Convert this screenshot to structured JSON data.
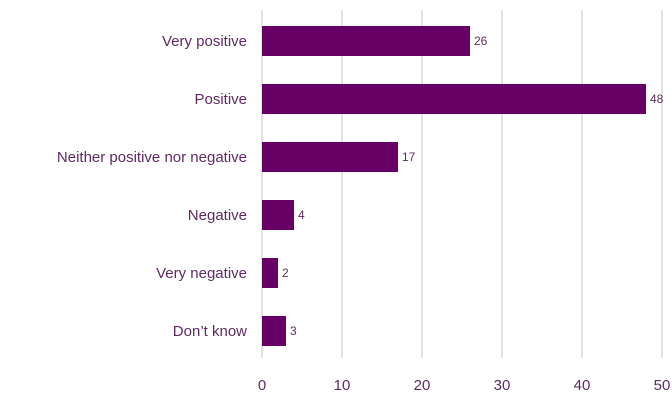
{
  "chart_data": {
    "type": "bar",
    "orientation": "horizontal",
    "categories": [
      "Very positive",
      "Positive",
      "Neither positive nor negative",
      "Negative",
      "Very negative",
      "Don’t know"
    ],
    "values": [
      26,
      48,
      17,
      4,
      2,
      3
    ],
    "data_labels": [
      "26",
      "48",
      "17",
      "4",
      "2",
      "3"
    ],
    "xlim": [
      0,
      50
    ],
    "xticks": [
      "0",
      "10",
      "20",
      "30",
      "40",
      "50"
    ],
    "grid": "vertical",
    "legend": "none",
    "colors": {
      "bar": "#660066",
      "grid": "#d9d9d9",
      "category_text": "#5f2a62",
      "tick_text": "#5f2a62",
      "value_text": "#5f2a62"
    }
  }
}
